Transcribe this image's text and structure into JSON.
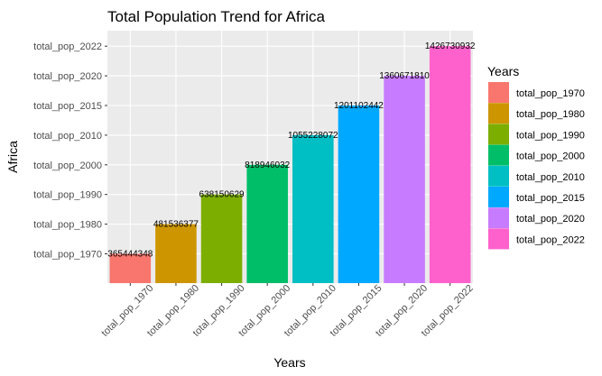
{
  "chart_data": {
    "type": "bar",
    "title": "Total Population Trend for Africa",
    "xlabel": "Years",
    "ylabel": "Africa",
    "categories": [
      "total_pop_1970",
      "total_pop_1980",
      "total_pop_1990",
      "total_pop_2000",
      "total_pop_2010",
      "total_pop_2015",
      "total_pop_2020",
      "total_pop_2022"
    ],
    "values": [
      365444348,
      481536377,
      638150629,
      818946032,
      1055228072,
      1201102442,
      1360671810,
      1426730932
    ],
    "labels": [
      "365444348",
      "481536377",
      "638150629",
      "818946032",
      "1055228072",
      "1201102442",
      "1360671810",
      "1426730932"
    ],
    "y_ticks": [
      "total_pop_1970",
      "total_pop_1980",
      "total_pop_1990",
      "total_pop_2000",
      "total_pop_2010",
      "total_pop_2015",
      "total_pop_2020",
      "total_pop_2022"
    ],
    "colors": [
      "#F8766D",
      "#CD9600",
      "#7CAE00",
      "#00BE67",
      "#00BFC4",
      "#00A9FF",
      "#C77CFF",
      "#FF61CC"
    ],
    "grid": true,
    "panel_background": "#EBEBEB",
    "legend": {
      "title": "Years",
      "position": "right",
      "entries": [
        "total_pop_1970",
        "total_pop_1980",
        "total_pop_1990",
        "total_pop_2000",
        "total_pop_2010",
        "total_pop_2015",
        "total_pop_2020",
        "total_pop_2022"
      ]
    }
  }
}
